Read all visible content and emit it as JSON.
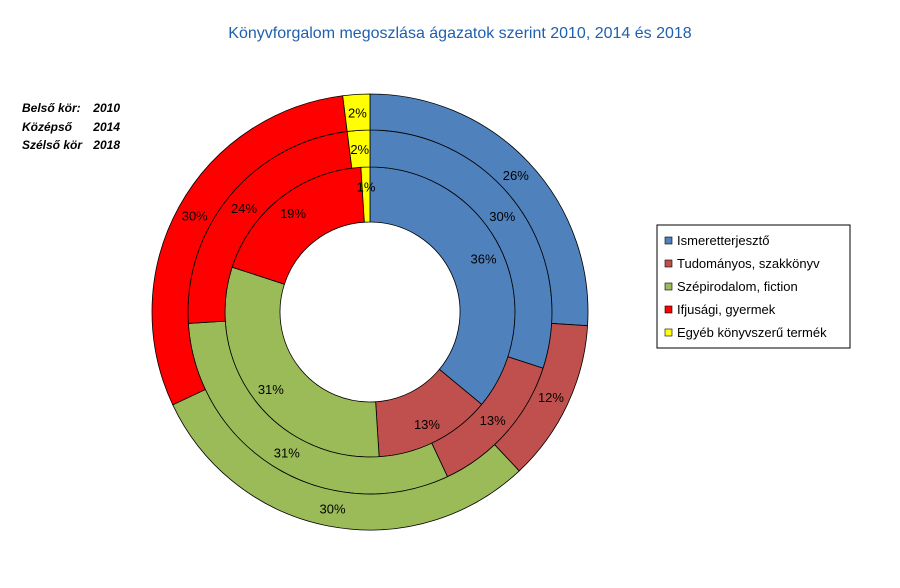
{
  "chart_data": {
    "type": "pie",
    "subtype": "multi-level doughnut",
    "title": "Könyvforgalom megoszlása ágazatok szerint 2010, 2014 és 2018",
    "categories": [
      "Ismeretterjesztő",
      "Tudományos, szakkönyv",
      "Szépirodalom, fiction",
      "Ifjusági, gyermek",
      "Egyéb könyvszerű termék"
    ],
    "colors": [
      "#4F81BD",
      "#C0504D",
      "#9BBB59",
      "#FF0000",
      "#FFFF00"
    ],
    "series": [
      {
        "name": "2010",
        "ring": "inner",
        "values": [
          36,
          13,
          31,
          19,
          1
        ],
        "labels": [
          "36%",
          "13%",
          "31%",
          "19%",
          "1%"
        ]
      },
      {
        "name": "2014",
        "ring": "middle",
        "values": [
          30,
          13,
          31,
          24,
          2
        ],
        "labels": [
          "30%",
          "13%",
          "31%",
          "24%",
          "2%"
        ]
      },
      {
        "name": "2018",
        "ring": "outer",
        "values": [
          26,
          12,
          30,
          30,
          2
        ],
        "labels": [
          "26%",
          "12%",
          "30%",
          "30%",
          "2%"
        ]
      }
    ],
    "ring_key": [
      {
        "label": "Belső kör:",
        "year": "2010"
      },
      {
        "label": "Középső",
        "year": "2014"
      },
      {
        "label": "Szélső kör",
        "year": "2018"
      }
    ],
    "legend_position": "right"
  }
}
